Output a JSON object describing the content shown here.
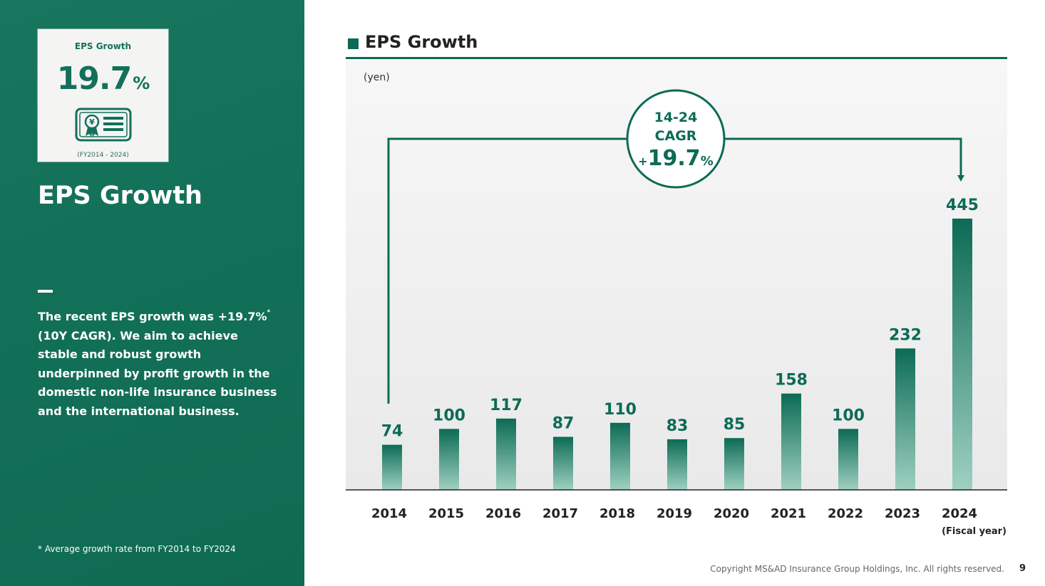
{
  "left_panel": {
    "kpi_card": {
      "title": "EPS Growth",
      "value": "19.7",
      "unit": "%",
      "icon": "certificate-yen-icon",
      "period": "(FY2014 - 2024)"
    },
    "heading": "EPS Growth",
    "body_text": "The recent EPS growth was +19.7%",
    "body_marker": "*",
    "body_text_rest": " (10Y CAGR). We aim to achieve stable and robust growth underpinned by profit growth in the domestic non-life insurance business and the international business.",
    "footnote": "* Average growth rate from FY2014 to FY2024"
  },
  "chart_header": {
    "title": "EPS Growth"
  },
  "chart_data": {
    "type": "bar",
    "title": "EPS Growth",
    "ylabel": "(yen)",
    "xlabel": "(Fiscal year)",
    "categories": [
      "2014",
      "2015",
      "2016",
      "2017",
      "2018",
      "2019",
      "2020",
      "2021",
      "2022",
      "2023",
      "2024"
    ],
    "values": [
      74,
      100,
      117,
      87,
      110,
      83,
      85,
      158,
      100,
      232,
      445
    ],
    "ylim": [
      0,
      445
    ],
    "grid": false,
    "annotation": {
      "line1": "14-24",
      "line2": "CAGR",
      "sign": "+",
      "value": "19.7",
      "unit": "%",
      "from": "2014",
      "to": "2024"
    }
  },
  "colors": {
    "brand_green": "#0c6b55",
    "bar_top": "#0c6b55",
    "bar_bottom": "#9fd0c1",
    "panel_green": "#137058"
  },
  "footer": {
    "copyright": "Copyright MS&AD Insurance Group Holdings, Inc. All rights reserved.",
    "page_number": "9"
  }
}
